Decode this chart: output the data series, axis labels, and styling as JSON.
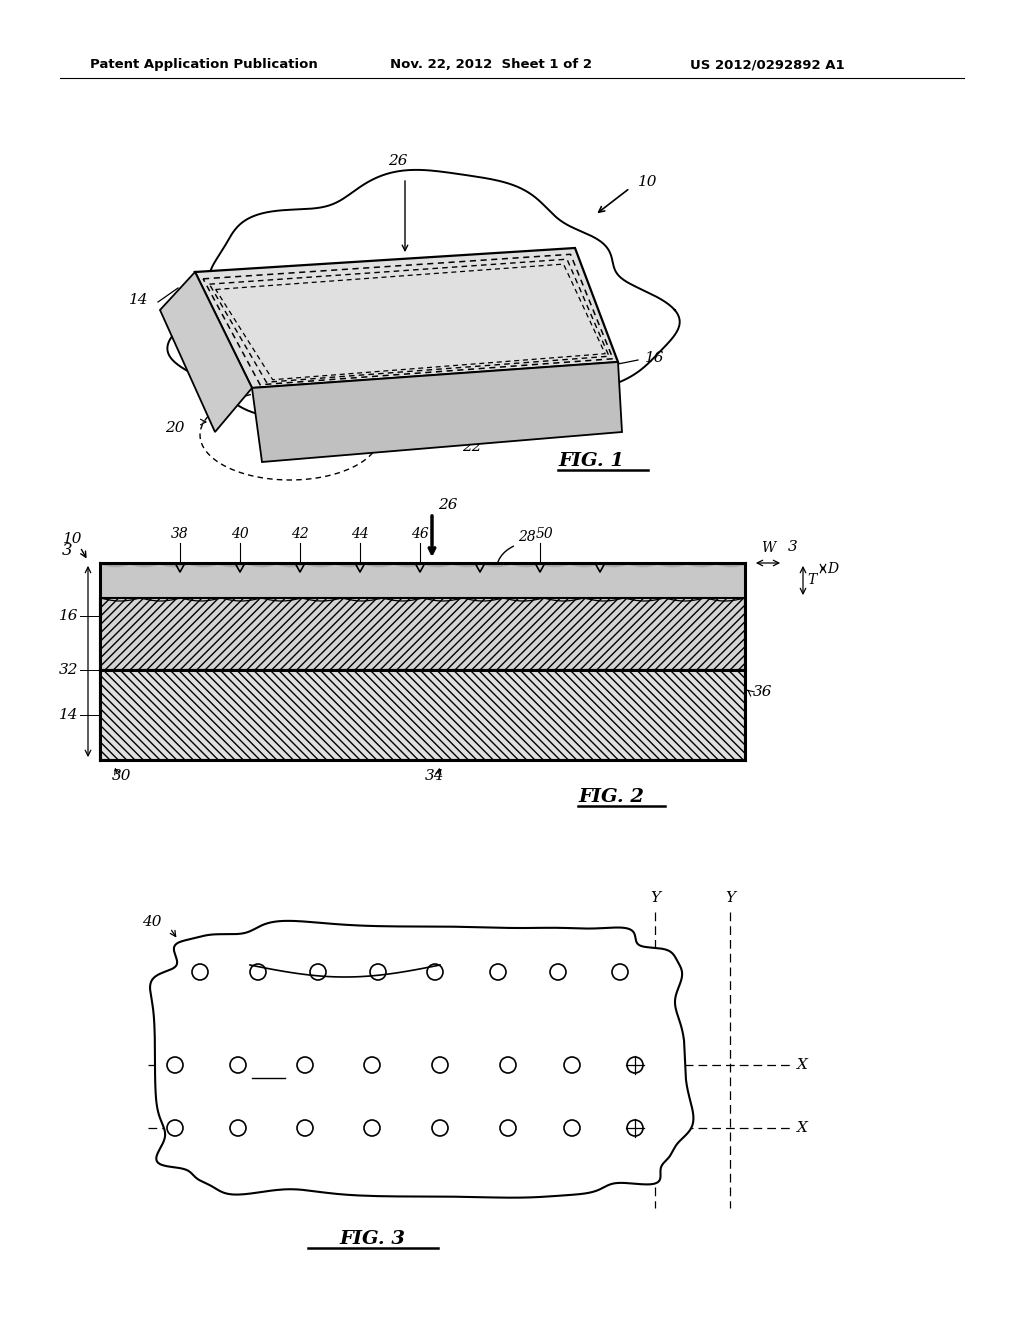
{
  "header_left": "Patent Application Publication",
  "header_mid": "Nov. 22, 2012  Sheet 1 of 2",
  "header_right": "US 2012/0292892 A1",
  "fig1_label": "FIG. 1",
  "fig2_label": "FIG. 2",
  "fig3_label": "FIG. 3",
  "bg_color": "#ffffff",
  "line_color": "#000000"
}
